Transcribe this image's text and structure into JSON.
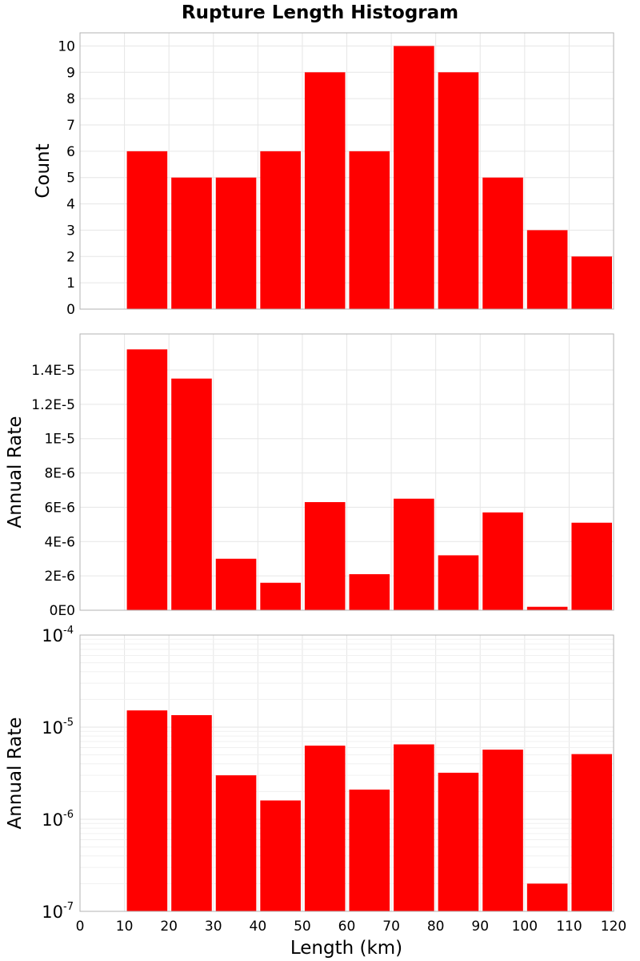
{
  "chart_data": {
    "type": "bar",
    "title": "Rupture Length Histogram",
    "xlabel": "Length (km)",
    "xlim": [
      0,
      120
    ],
    "xticks": [
      "0",
      "10",
      "20",
      "30",
      "40",
      "50",
      "60",
      "70",
      "80",
      "90",
      "100",
      "110",
      "120"
    ],
    "bin_width": 10,
    "bin_starts": [
      10,
      20,
      30,
      40,
      50,
      60,
      70,
      80,
      90,
      100,
      110
    ],
    "bar_color": "#ff0000",
    "panels": [
      {
        "ylabel": "Count",
        "scale": "linear",
        "ylim": [
          0,
          10.5
        ],
        "yticks": [
          0,
          1,
          2,
          3,
          4,
          5,
          6,
          7,
          8,
          9,
          10
        ],
        "ytick_labels": [
          "0",
          "1",
          "2",
          "3",
          "4",
          "5",
          "6",
          "7",
          "8",
          "9",
          "10"
        ],
        "values": [
          6,
          5,
          5,
          6,
          9,
          6,
          10,
          9,
          5,
          3,
          2
        ]
      },
      {
        "ylabel": "Annual Rate",
        "scale": "linear",
        "ylim": [
          0,
          1.61e-05
        ],
        "yticks": [
          0,
          2e-06,
          4e-06,
          6e-06,
          8e-06,
          1e-05,
          1.2e-05,
          1.4e-05
        ],
        "ytick_labels": [
          "0E0",
          "2E-6",
          "4E-6",
          "6E-6",
          "8E-6",
          "1E-5",
          "1.2E-5",
          "1.4E-5"
        ],
        "values": [
          1.52e-05,
          1.35e-05,
          3e-06,
          1.6e-06,
          6.3e-06,
          2.1e-06,
          6.5e-06,
          3.2e-06,
          5.7e-06,
          2e-07,
          5.1e-06
        ]
      },
      {
        "ylabel": "Annual Rate",
        "scale": "log",
        "ylim": [
          1e-07,
          0.0001
        ],
        "yticks": [
          1e-07,
          1e-06,
          1e-05,
          0.0001
        ],
        "ytick_labels": [
          {
            "base": "10",
            "exp": "-7"
          },
          {
            "base": "10",
            "exp": "-6"
          },
          {
            "base": "10",
            "exp": "-5"
          },
          {
            "base": "10",
            "exp": "-4"
          }
        ],
        "values": [
          1.52e-05,
          1.35e-05,
          3e-06,
          1.6e-06,
          6.3e-06,
          2.1e-06,
          6.5e-06,
          3.2e-06,
          5.7e-06,
          2e-07,
          5.1e-06
        ]
      }
    ]
  }
}
